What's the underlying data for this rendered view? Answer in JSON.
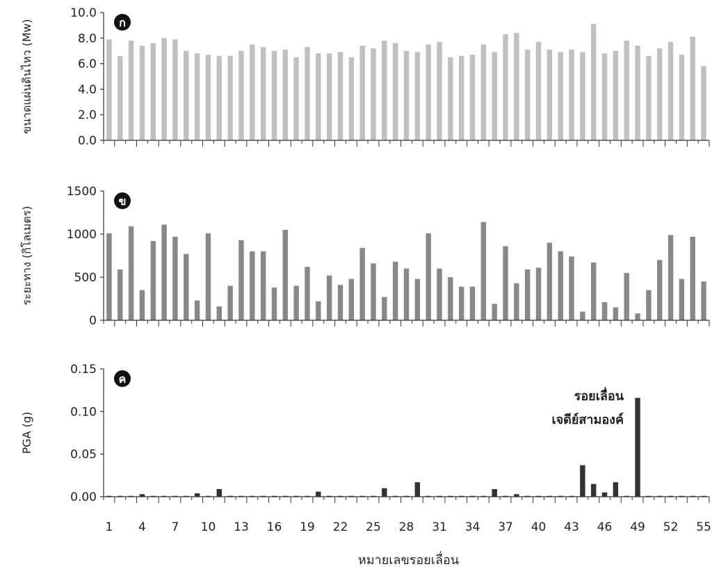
{
  "chart_data": [
    {
      "type": "bar",
      "panel_letter": "ก",
      "ylabel": "ขนาดแผ่นดินไหว (Mw)",
      "ylim": [
        0,
        10
      ],
      "y_ticks": [
        "0.0",
        "2.0",
        "4.0",
        "6.0",
        "8.0",
        "10.0"
      ],
      "y_tick_values": [
        0,
        2,
        4,
        6,
        8,
        10
      ],
      "color": "#c0c0c0",
      "categories": [
        1,
        2,
        3,
        4,
        5,
        6,
        7,
        8,
        9,
        10,
        11,
        12,
        13,
        14,
        15,
        16,
        17,
        18,
        19,
        20,
        21,
        22,
        23,
        24,
        25,
        26,
        27,
        28,
        29,
        30,
        31,
        32,
        33,
        34,
        35,
        36,
        37,
        38,
        39,
        40,
        41,
        42,
        43,
        44,
        45,
        46,
        47,
        48,
        49,
        50,
        51,
        52,
        53,
        54,
        55
      ],
      "values": [
        7.9,
        6.6,
        7.8,
        7.4,
        7.6,
        8.0,
        7.9,
        7.0,
        6.8,
        6.7,
        6.6,
        6.6,
        7.0,
        7.5,
        7.3,
        7.0,
        7.1,
        6.5,
        7.3,
        6.8,
        6.8,
        6.9,
        6.5,
        7.4,
        7.2,
        7.8,
        7.6,
        7.0,
        6.9,
        7.5,
        7.7,
        6.5,
        6.6,
        6.7,
        7.5,
        6.9,
        8.3,
        8.4,
        7.1,
        7.7,
        7.1,
        6.9,
        7.1,
        6.9,
        9.1,
        6.8,
        7.0,
        7.8,
        7.4,
        6.6,
        7.2,
        7.7,
        6.7,
        8.1,
        5.8
      ]
    },
    {
      "type": "bar",
      "panel_letter": "ข",
      "ylabel": "ระยะทาง (กิโลเมตร)",
      "ylim": [
        0,
        1500
      ],
      "y_ticks": [
        "0",
        "500",
        "1000",
        "1500"
      ],
      "y_tick_values": [
        0,
        500,
        1000,
        1500
      ],
      "color": "#888888",
      "categories": [
        1,
        2,
        3,
        4,
        5,
        6,
        7,
        8,
        9,
        10,
        11,
        12,
        13,
        14,
        15,
        16,
        17,
        18,
        19,
        20,
        21,
        22,
        23,
        24,
        25,
        26,
        27,
        28,
        29,
        30,
        31,
        32,
        33,
        34,
        35,
        36,
        37,
        38,
        39,
        40,
        41,
        42,
        43,
        44,
        45,
        46,
        47,
        48,
        49,
        50,
        51,
        52,
        53,
        54,
        55
      ],
      "values": [
        1010,
        590,
        1090,
        350,
        920,
        1110,
        970,
        770,
        230,
        1010,
        160,
        400,
        930,
        800,
        800,
        380,
        1050,
        400,
        620,
        220,
        520,
        410,
        480,
        840,
        660,
        270,
        680,
        600,
        480,
        1010,
        600,
        500,
        390,
        390,
        1140,
        190,
        860,
        430,
        590,
        610,
        900,
        800,
        740,
        100,
        670,
        210,
        150,
        550,
        80,
        350,
        700,
        990,
        480,
        970,
        450
      ]
    },
    {
      "type": "bar",
      "panel_letter": "ค",
      "ylabel": "PGA (g)",
      "ylim": [
        0,
        0.15
      ],
      "y_ticks": [
        "0.00",
        "0.05",
        "0.10",
        "0.15"
      ],
      "y_tick_values": [
        0,
        0.05,
        0.1,
        0.15
      ],
      "color": "#333333",
      "annotation": [
        "รอยเลื่อน",
        "เจดีย์สามองค์"
      ],
      "xlabel": "หมายเลขรอยเลื่อน",
      "x_tick_labels": [
        "1",
        "4",
        "7",
        "10",
        "13",
        "16",
        "19",
        "22",
        "25",
        "28",
        "31",
        "34",
        "37",
        "40",
        "43",
        "46",
        "49",
        "52",
        "55"
      ],
      "categories": [
        1,
        2,
        3,
        4,
        5,
        6,
        7,
        8,
        9,
        10,
        11,
        12,
        13,
        14,
        15,
        16,
        17,
        18,
        19,
        20,
        21,
        22,
        23,
        24,
        25,
        26,
        27,
        28,
        29,
        30,
        31,
        32,
        33,
        34,
        35,
        36,
        37,
        38,
        39,
        40,
        41,
        42,
        43,
        44,
        45,
        46,
        47,
        48,
        49,
        50,
        51,
        52,
        53,
        54,
        55
      ],
      "values": [
        0.001,
        0.001,
        0.001,
        0.003,
        0.001,
        0.001,
        0.001,
        0.001,
        0.004,
        0.001,
        0.009,
        0.001,
        0.001,
        0.001,
        0.001,
        0.001,
        0.001,
        0.001,
        0.001,
        0.006,
        0.001,
        0.001,
        0.001,
        0.001,
        0.001,
        0.01,
        0.001,
        0.001,
        0.017,
        0.001,
        0.001,
        0.001,
        0.001,
        0.001,
        0.001,
        0.009,
        0.001,
        0.003,
        0.001,
        0.001,
        0.001,
        0.001,
        0.001,
        0.037,
        0.015,
        0.005,
        0.017,
        0.001,
        0.116,
        0.001,
        0.001,
        0.001,
        0.001,
        0.001,
        0.001
      ]
    }
  ]
}
